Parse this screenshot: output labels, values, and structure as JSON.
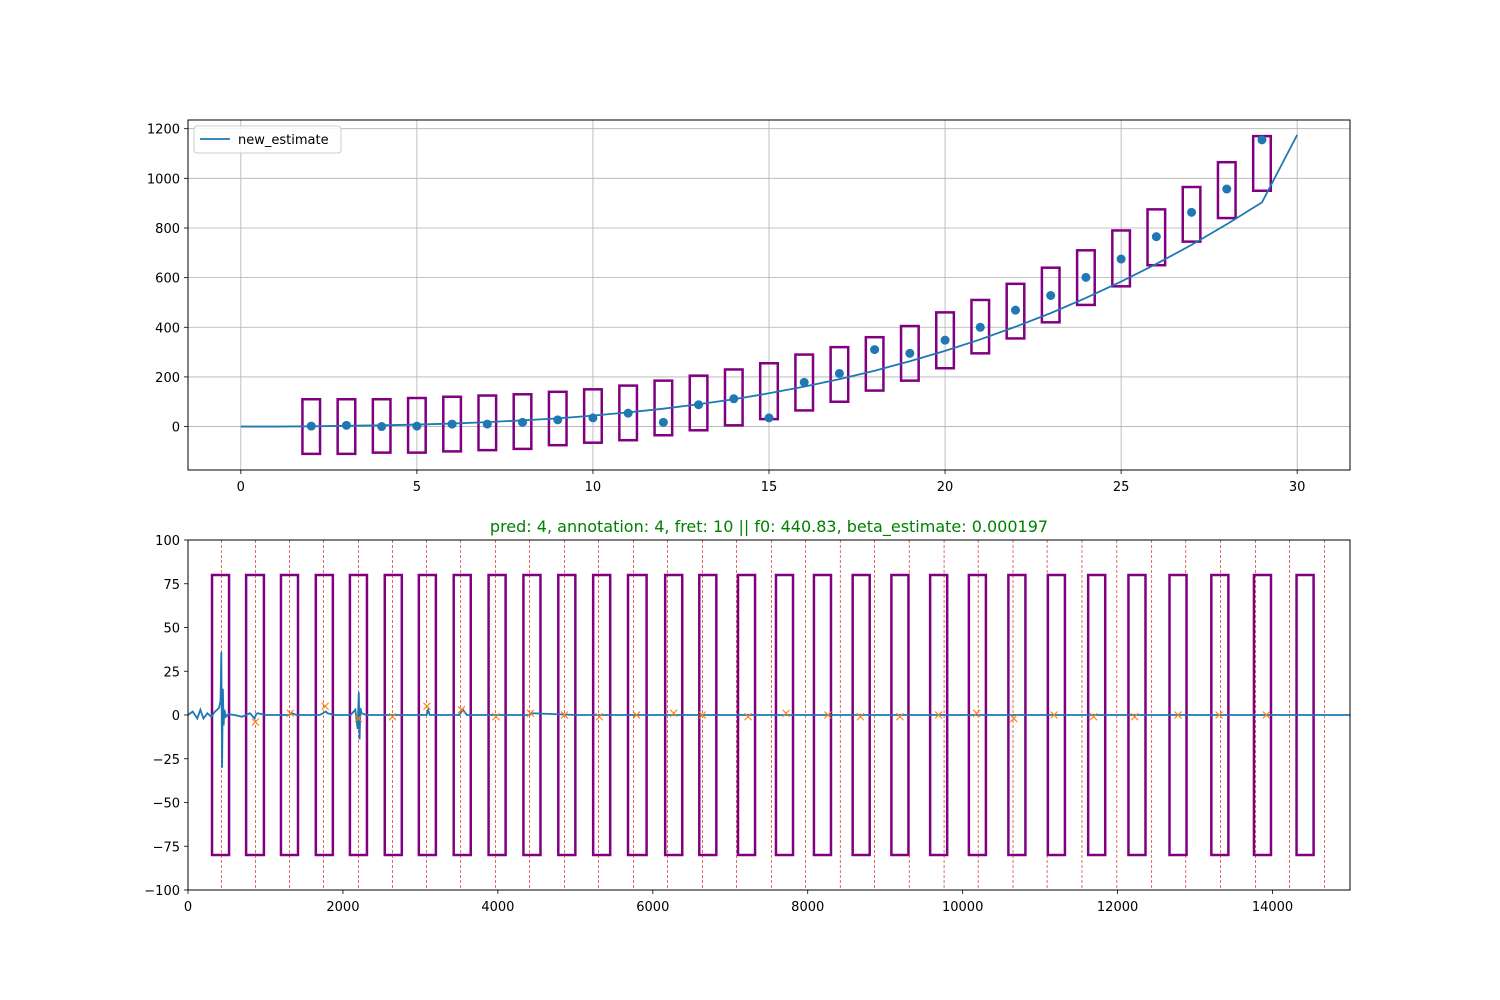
{
  "colors": {
    "series_blue": "#1f77b4",
    "peak_orange": "#ff7f0e",
    "box_purple": "#800080",
    "grid_gray": "#b0b0b0",
    "marker_red": "#d62728",
    "title_green": "#008000"
  },
  "chart_data": [
    {
      "type": "line",
      "title": "",
      "xlabel": "",
      "ylabel": "",
      "xlim": [
        -1.5,
        31.5
      ],
      "ylim": [
        -175,
        1235
      ],
      "xticks": [
        0,
        5,
        10,
        15,
        20,
        25,
        30
      ],
      "yticks": [
        0,
        200,
        400,
        600,
        800,
        1000,
        1200
      ],
      "grid": true,
      "legend_position": "top-left",
      "legend": [
        "new_estimate"
      ],
      "line": {
        "name": "new_estimate",
        "x": [
          0,
          1,
          2,
          3,
          4,
          5,
          6,
          7,
          8,
          9,
          10,
          11,
          12,
          13,
          14,
          15,
          16,
          17,
          18,
          19,
          20,
          21,
          22,
          23,
          24,
          25,
          26,
          27,
          28,
          29,
          30
        ],
        "y": [
          0,
          0,
          1,
          3,
          5,
          8,
          12,
          18,
          25,
          33,
          44,
          57,
          72,
          90,
          110,
          134,
          161,
          191,
          225,
          263,
          305,
          351,
          402,
          457,
          518,
          584,
          655,
          732,
          815,
          903,
          1175
        ]
      },
      "points": {
        "x": [
          2,
          3,
          4,
          5,
          6,
          7,
          8,
          9,
          10,
          11,
          12,
          13,
          14,
          15,
          16,
          17,
          18,
          19,
          20,
          21,
          22,
          23,
          24,
          25,
          26,
          27,
          28,
          29
        ],
        "y": [
          2,
          5,
          0,
          2,
          10,
          10,
          17,
          27,
          35,
          54,
          17,
          88,
          112,
          35,
          178,
          214,
          310,
          295,
          348,
          400,
          469,
          528,
          601,
          675,
          765,
          863,
          957,
          1155
        ]
      },
      "boxes": [
        {
          "x": 2,
          "low": -110,
          "high": 110
        },
        {
          "x": 3,
          "low": -110,
          "high": 110
        },
        {
          "x": 4,
          "low": -105,
          "high": 110
        },
        {
          "x": 5,
          "low": -105,
          "high": 115
        },
        {
          "x": 6,
          "low": -100,
          "high": 120
        },
        {
          "x": 7,
          "low": -95,
          "high": 125
        },
        {
          "x": 8,
          "low": -90,
          "high": 130
        },
        {
          "x": 9,
          "low": -75,
          "high": 140
        },
        {
          "x": 10,
          "low": -65,
          "high": 150
        },
        {
          "x": 11,
          "low": -55,
          "high": 165
        },
        {
          "x": 12,
          "low": -35,
          "high": 185
        },
        {
          "x": 13,
          "low": -15,
          "high": 205
        },
        {
          "x": 14,
          "low": 5,
          "high": 230
        },
        {
          "x": 15,
          "low": 30,
          "high": 255
        },
        {
          "x": 16,
          "low": 65,
          "high": 290
        },
        {
          "x": 17,
          "low": 100,
          "high": 320
        },
        {
          "x": 18,
          "low": 145,
          "high": 360
        },
        {
          "x": 19,
          "low": 185,
          "high": 405
        },
        {
          "x": 20,
          "low": 235,
          "high": 460
        },
        {
          "x": 21,
          "low": 295,
          "high": 510
        },
        {
          "x": 22,
          "low": 355,
          "high": 575
        },
        {
          "x": 23,
          "low": 420,
          "high": 640
        },
        {
          "x": 24,
          "low": 490,
          "high": 710
        },
        {
          "x": 25,
          "low": 565,
          "high": 790
        },
        {
          "x": 26,
          "low": 650,
          "high": 875
        },
        {
          "x": 27,
          "low": 745,
          "high": 965
        },
        {
          "x": 28,
          "low": 840,
          "high": 1065
        },
        {
          "x": 29,
          "low": 950,
          "high": 1170
        }
      ]
    },
    {
      "type": "line",
      "title": "pred: 4, annotation: 4, fret: 10 || f0: 440.83, beta_estimate: 0.000197",
      "xlabel": "",
      "ylabel": "",
      "xlim": [
        0,
        15000
      ],
      "ylim": [
        -100,
        100
      ],
      "xticks": [
        0,
        2000,
        4000,
        6000,
        8000,
        10000,
        12000,
        14000
      ],
      "yticks": [
        -100,
        -75,
        -50,
        -25,
        0,
        25,
        50,
        75,
        100
      ],
      "grid": false,
      "spectrum": {
        "x": [
          0,
          60,
          120,
          160,
          200,
          250,
          300,
          350,
          400,
          420,
          430,
          440,
          450,
          460,
          470,
          490,
          520,
          600,
          700,
          800,
          860,
          880,
          900,
          1000,
          1300,
          1340,
          1400,
          1700,
          1780,
          1800,
          1900,
          2100,
          2160,
          2190,
          2205,
          2215,
          2225,
          2240,
          2300,
          2600,
          3080,
          3100,
          3120,
          3500,
          3550,
          3600,
          4400,
          4450,
          5000,
          15000
        ],
        "y": [
          0,
          2,
          -2,
          3,
          -2,
          1,
          -1,
          2,
          4,
          8,
          36,
          -30,
          15,
          -6,
          3,
          -1,
          0.5,
          0,
          -1,
          1,
          -2,
          0.5,
          1,
          0,
          0,
          1,
          0,
          0,
          2,
          1,
          0,
          0,
          3,
          -8,
          13,
          -14,
          4,
          1,
          0,
          0,
          0,
          3,
          0,
          0,
          3,
          0,
          0,
          1,
          0,
          0
        ]
      },
      "peak_markers": {
        "x": [
          870,
          1320,
          1770,
          2200,
          2640,
          3085,
          3530,
          3975,
          4420,
          4860,
          5310,
          5790,
          6270,
          6640,
          7230,
          7720,
          8260,
          8680,
          9190,
          9690,
          10180,
          10660,
          11180,
          11690,
          12220,
          12780,
          13310,
          13920
        ],
        "y": [
          -4,
          1,
          5,
          -2,
          -1,
          5,
          3,
          -1,
          1,
          0,
          -1,
          0,
          1,
          0,
          -1,
          1,
          0,
          -1,
          -1,
          0,
          1,
          -2,
          0,
          -1,
          -1,
          0,
          0,
          0
        ]
      },
      "vertical_markers": [
        430,
        870,
        1310,
        1750,
        2200,
        2640,
        3080,
        3520,
        3970,
        4410,
        4860,
        5300,
        5750,
        6190,
        6640,
        7080,
        7530,
        7970,
        8420,
        8860,
        9310,
        9760,
        10200,
        10650,
        11090,
        11540,
        11990,
        12440,
        12880,
        13330,
        13780,
        14220,
        14670
      ],
      "boxes": [
        {
          "x0": 310,
          "x1": 530
        },
        {
          "x0": 750,
          "x1": 980
        },
        {
          "x0": 1200,
          "x1": 1420
        },
        {
          "x0": 1650,
          "x1": 1870
        },
        {
          "x0": 2090,
          "x1": 2310
        },
        {
          "x0": 2540,
          "x1": 2760
        },
        {
          "x0": 2980,
          "x1": 3200
        },
        {
          "x0": 3430,
          "x1": 3650
        },
        {
          "x0": 3880,
          "x1": 4100
        },
        {
          "x0": 4330,
          "x1": 4550
        },
        {
          "x0": 4780,
          "x1": 5000
        },
        {
          "x0": 5230,
          "x1": 5450
        },
        {
          "x0": 5680,
          "x1": 5920
        },
        {
          "x0": 6160,
          "x1": 6380
        },
        {
          "x0": 6600,
          "x1": 6820
        },
        {
          "x0": 7100,
          "x1": 7320
        },
        {
          "x0": 7590,
          "x1": 7810
        },
        {
          "x0": 8080,
          "x1": 8300
        },
        {
          "x0": 8580,
          "x1": 8800
        },
        {
          "x0": 9080,
          "x1": 9300
        },
        {
          "x0": 9580,
          "x1": 9800
        },
        {
          "x0": 10080,
          "x1": 10300
        },
        {
          "x0": 10590,
          "x1": 10810
        },
        {
          "x0": 11100,
          "x1": 11320
        },
        {
          "x0": 11620,
          "x1": 11840
        },
        {
          "x0": 12140,
          "x1": 12360
        },
        {
          "x0": 12670,
          "x1": 12890
        },
        {
          "x0": 13210,
          "x1": 13430
        },
        {
          "x0": 13760,
          "x1": 13980
        },
        {
          "x0": 14310,
          "x1": 14530
        }
      ],
      "box_range": [
        -80,
        80
      ]
    }
  ]
}
